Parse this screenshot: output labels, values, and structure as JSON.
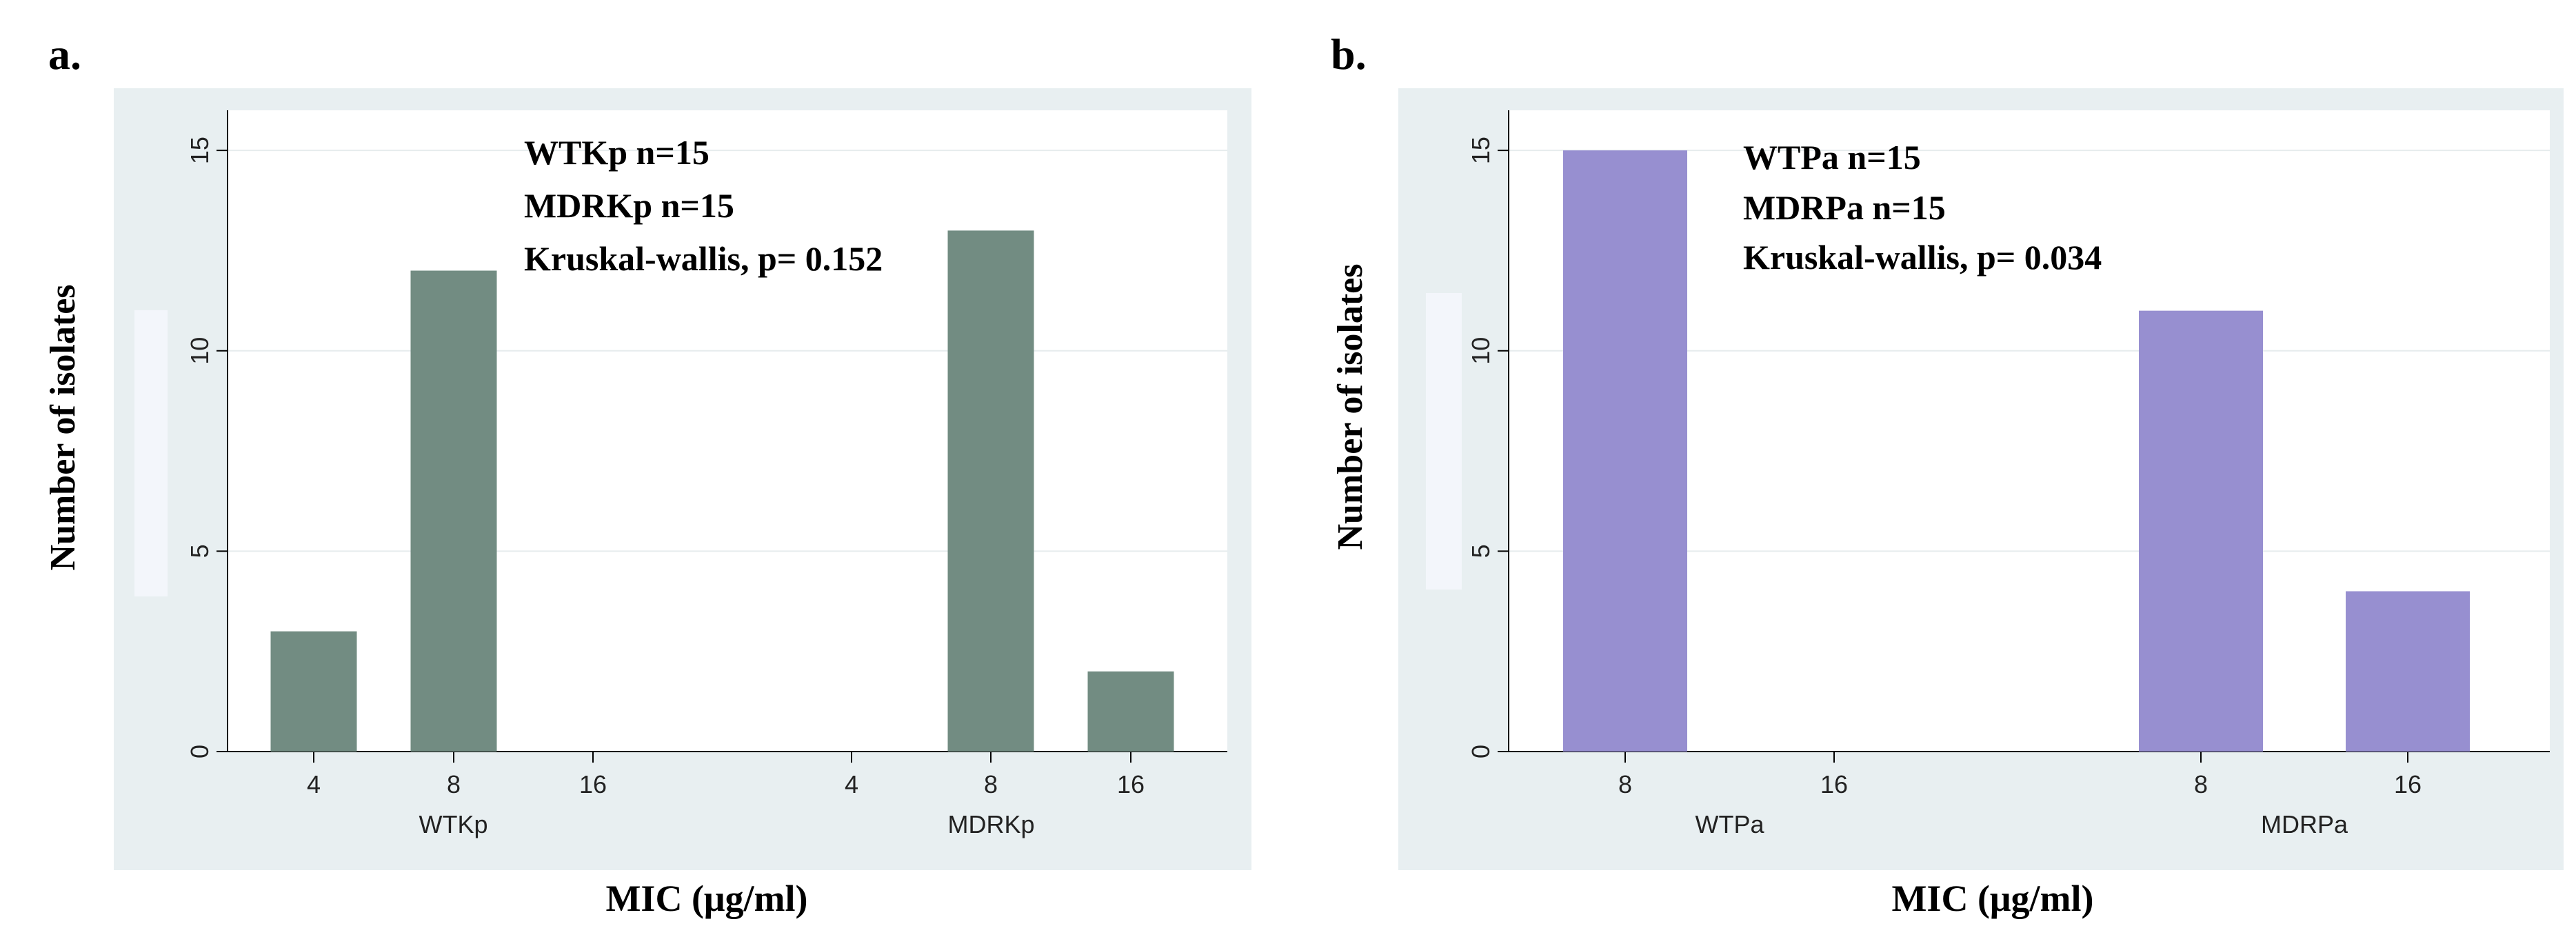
{
  "panels": [
    {
      "label": "a."
    },
    {
      "label": "b."
    }
  ],
  "chart_data": [
    {
      "type": "bar",
      "title": "",
      "ylabel": "Number  of  isolates",
      "xlabel": "MIC (μg/ml)",
      "ylim": [
        0,
        16
      ],
      "yticks": [
        0,
        5,
        10,
        15
      ],
      "grid": true,
      "color": "#728c82",
      "groups": [
        {
          "name": "WTKp",
          "categories": [
            "4",
            "8",
            "16"
          ],
          "values": [
            3,
            12,
            0
          ]
        },
        {
          "name": "MDRKp",
          "categories": [
            "4",
            "8",
            "16"
          ],
          "values": [
            0,
            13,
            2
          ]
        }
      ],
      "annotations": [
        "WTKp n=15",
        "MDRKp n=15",
        "Kruskal-wallis, p= 0.152"
      ]
    },
    {
      "type": "bar",
      "title": "",
      "ylabel": "Number  of  isolates",
      "xlabel": "MIC (μg/ml)",
      "ylim": [
        0,
        16
      ],
      "yticks": [
        0,
        5,
        10,
        15
      ],
      "grid": true,
      "color": "#978fd0",
      "groups": [
        {
          "name": "WTPa",
          "categories": [
            "8",
            "16"
          ],
          "values": [
            15,
            0
          ]
        },
        {
          "name": "MDRPa",
          "categories": [
            "8",
            "16"
          ],
          "values": [
            11,
            4
          ]
        }
      ],
      "annotations": [
        "WTPa n=15",
        "MDRPa n=15",
        "Kruskal-wallis, p= 0.034"
      ]
    }
  ]
}
